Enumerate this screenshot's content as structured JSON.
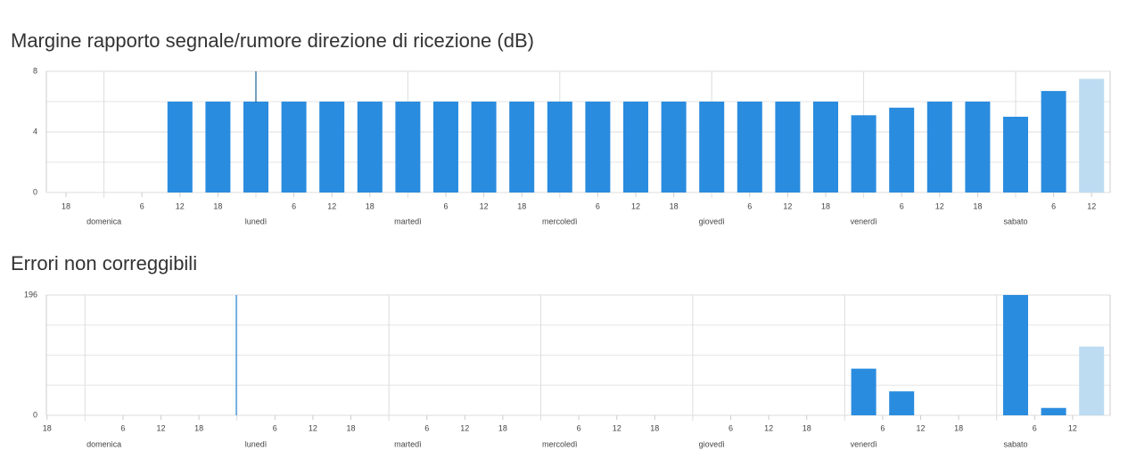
{
  "chart_data": [
    {
      "type": "bar",
      "title": "Margine rapporto segnale/rumore direzione di ricezione (dB)",
      "categories": [
        "18",
        "domenica",
        "6",
        "12",
        "18",
        "lunedì",
        "6",
        "12",
        "18",
        "martedì",
        "6",
        "12",
        "18",
        "mercoledì",
        "6",
        "12",
        "18",
        "giovedì",
        "6",
        "12",
        "18",
        "venerdì",
        "6",
        "12",
        "18",
        "sabato",
        "6",
        "12"
      ],
      "values": [
        null,
        null,
        null,
        6,
        6,
        6,
        6,
        6,
        6,
        6,
        6,
        6,
        6,
        6,
        6,
        6,
        6,
        6,
        6,
        6,
        6,
        5.1,
        5.6,
        6,
        6,
        5,
        6.7,
        7.5
      ],
      "colors": [
        "#2a8cde",
        "#2a8cde",
        "#2a8cde",
        "#2a8cde",
        "#2a8cde",
        "#2a8cde",
        "#2a8cde",
        "#2a8cde",
        "#2a8cde",
        "#2a8cde",
        "#2a8cde",
        "#2a8cde",
        "#2a8cde",
        "#2a8cde",
        "#2a8cde",
        "#2a8cde",
        "#2a8cde",
        "#2a8cde",
        "#2a8cde",
        "#2a8cde",
        "#2a8cde",
        "#2a8cde",
        "#2a8cde",
        "#2a8cde",
        "#2a8cde",
        "#2a8cde",
        "#2a8cde",
        "#bddcf2"
      ],
      "ylim": [
        0,
        8
      ],
      "yticks": [
        0,
        4,
        8
      ],
      "grid": true
    },
    {
      "type": "bar",
      "title": "Errori non correggibili",
      "categories": [
        "18",
        "domenica",
        "6",
        "12",
        "18",
        "lunedì",
        "6",
        "12",
        "18",
        "martedì",
        "6",
        "12",
        "18",
        "mercoledì",
        "6",
        "12",
        "18",
        "giovedì",
        "6",
        "12",
        "18",
        "venerdì",
        "6",
        "12",
        "18",
        "sabato",
        "6",
        "12"
      ],
      "values": [
        null,
        null,
        null,
        0,
        0,
        0,
        0,
        0,
        0,
        0,
        0,
        0,
        0,
        0,
        0,
        0,
        0,
        0,
        0,
        0,
        0,
        76,
        39,
        0,
        0,
        196,
        12,
        112
      ],
      "colors": [
        "#2a8cde",
        "#2a8cde",
        "#2a8cde",
        "#2a8cde",
        "#2a8cde",
        "#2a8cde",
        "#2a8cde",
        "#2a8cde",
        "#2a8cde",
        "#2a8cde",
        "#2a8cde",
        "#2a8cde",
        "#2a8cde",
        "#2a8cde",
        "#2a8cde",
        "#2a8cde",
        "#2a8cde",
        "#2a8cde",
        "#2a8cde",
        "#2a8cde",
        "#2a8cde",
        "#2a8cde",
        "#2a8cde",
        "#2a8cde",
        "#2a8cde",
        "#2a8cde",
        "#2a8cde",
        "#bddcf2"
      ],
      "ylim": [
        0,
        196
      ],
      "yticks": [
        0,
        196
      ],
      "grid": true
    }
  ]
}
